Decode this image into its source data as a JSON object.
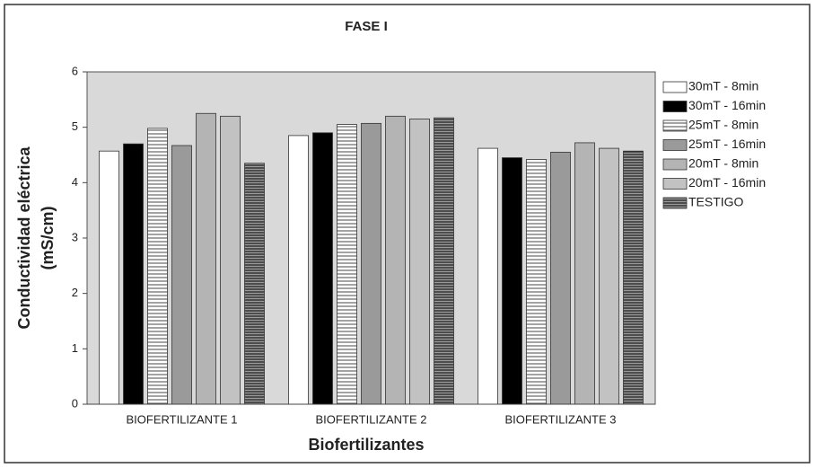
{
  "chart_data": {
    "type": "bar",
    "title": "FASE I",
    "x_label": "Biofertilizantes",
    "y_label": [
      "Conductividad eléctrica",
      "(mS/cm)"
    ],
    "categories": [
      "BIOFERTILIZANTE 1",
      "BIOFERTILIZANTE 2",
      "BIOFERTILIZANTE 3"
    ],
    "series": [
      {
        "name": "30mT - 8min",
        "color": "#ffffff",
        "pattern": "solid",
        "values": [
          4.57,
          4.85,
          4.62
        ]
      },
      {
        "name": "30mT - 16min",
        "color": "#000000",
        "pattern": "solid",
        "values": [
          4.7,
          4.9,
          4.45
        ]
      },
      {
        "name": "25mT - 8min",
        "color": "#ffffff",
        "pattern": "horizontal-lines",
        "values": [
          4.98,
          5.05,
          4.42
        ]
      },
      {
        "name": "25mT - 16min",
        "color": "#9a9a9a",
        "pattern": "solid",
        "values": [
          4.67,
          5.07,
          4.55
        ]
      },
      {
        "name": "20mT - 8min",
        "color": "#b4b4b4",
        "pattern": "solid",
        "values": [
          5.25,
          5.2,
          4.72
        ]
      },
      {
        "name": "20mT - 16min",
        "color": "#c2c2c2",
        "pattern": "solid",
        "values": [
          5.2,
          5.15,
          4.62
        ]
      },
      {
        "name": "TESTIGO",
        "color": "#555555",
        "pattern": "dense-lines",
        "values": [
          4.35,
          5.17,
          4.57
        ]
      }
    ],
    "ylim": [
      0,
      6
    ],
    "yticks": [
      0,
      1,
      2,
      3,
      4,
      5,
      6
    ],
    "plot_background": "#d9d9d9",
    "legend": "right"
  }
}
